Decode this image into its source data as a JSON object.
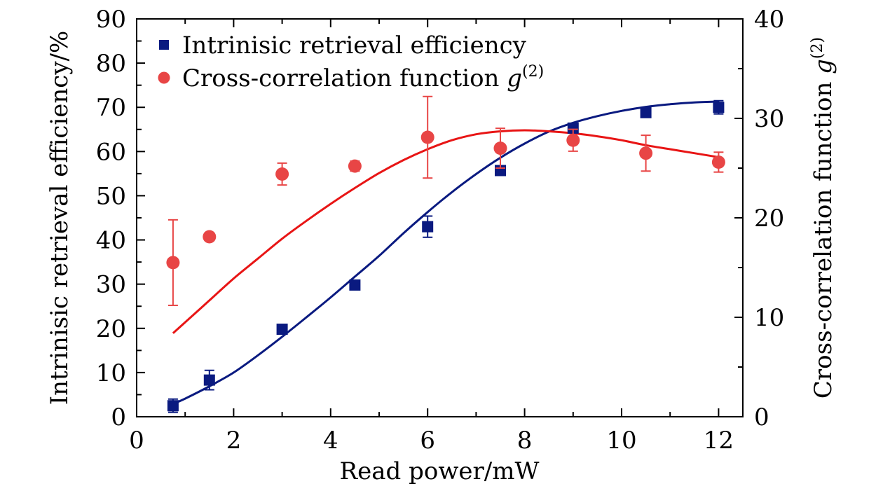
{
  "chart_data": {
    "type": "scatter",
    "title": "",
    "xlabel": "Read power/mW",
    "ylabel_left": "Intrinisic retrieval efficiency/%",
    "ylabel_right": "Cross-correlation function g(2)",
    "ylabel_right_main": "Cross-correlation function ",
    "ylabel_right_var": "g",
    "ylabel_right_sup": "(2)",
    "xlim": [
      0,
      12.5
    ],
    "ylim_left": [
      0,
      90
    ],
    "ylim_right": [
      0,
      40
    ],
    "x_ticks": [
      "0",
      "2",
      "4",
      "6",
      "8",
      "10",
      "12"
    ],
    "y_left_ticks": [
      "0",
      "10",
      "20",
      "30",
      "40",
      "50",
      "60",
      "70",
      "80",
      "90"
    ],
    "y_right_ticks": [
      "0",
      "10",
      "20",
      "30",
      "40"
    ],
    "legend_position": "top-left",
    "series": [
      {
        "name": "Intrinisic retrieval efficiency",
        "marker": "square",
        "axis": "left",
        "color": "#0a1a80",
        "x": [
          0.75,
          1.5,
          3,
          4.5,
          6,
          7.5,
          9,
          10.5,
          12
        ],
        "y": [
          2.5,
          8.3,
          19.8,
          29.8,
          43,
          55.7,
          65.3,
          68.8,
          70
        ],
        "err": [
          1.5,
          2.2,
          1,
          0.8,
          2.4,
          0.8,
          1,
          1,
          1.5
        ]
      },
      {
        "name": "Cross-correlation function g(2)",
        "name_main": "Cross-correlation function ",
        "name_var": "g",
        "name_sup": "(2)",
        "marker": "circle",
        "axis": "right",
        "color": "#e84545",
        "x": [
          0.75,
          1.5,
          3,
          4.5,
          6,
          7.5,
          9,
          10.5,
          12
        ],
        "y": [
          15.5,
          18.1,
          24.4,
          25.2,
          28.1,
          27,
          27.8,
          26.5,
          25.6
        ],
        "err": [
          4.3,
          0,
          1.1,
          0.5,
          4.1,
          2,
          1.1,
          1.8,
          1
        ]
      }
    ],
    "fits": [
      {
        "name": "efficiency-fit",
        "axis": "left",
        "color": "#0a1a80",
        "x": [
          0.75,
          1,
          1.5,
          2,
          2.5,
          3,
          3.5,
          4,
          4.5,
          5,
          5.5,
          6,
          6.5,
          7,
          7.5,
          8,
          8.5,
          9,
          9.5,
          10,
          10.5,
          11,
          11.5,
          12
        ],
        "y": [
          2.9,
          4.1,
          6.9,
          10,
          13.9,
          18.1,
          22.5,
          27,
          31.7,
          36.4,
          41.5,
          46.3,
          50.8,
          54.9,
          58.6,
          61.8,
          64.5,
          66.5,
          68,
          69.2,
          70.1,
          70.7,
          71.1,
          71.3
        ]
      },
      {
        "name": "correlation-fit",
        "axis": "right",
        "color": "#e81515",
        "x": [
          0.75,
          1,
          1.5,
          2,
          2.5,
          3,
          3.5,
          4,
          4.5,
          5,
          5.5,
          6,
          6.5,
          7,
          7.5,
          8,
          8.5,
          9,
          9.5,
          10,
          10.5,
          11,
          11.5,
          12
        ],
        "y": [
          8.4,
          9.5,
          11.7,
          13.9,
          15.9,
          17.9,
          19.7,
          21.4,
          23,
          24.5,
          25.8,
          26.9,
          27.8,
          28.4,
          28.7,
          28.8,
          28.7,
          28.5,
          28.2,
          27.8,
          27.3,
          26.9,
          26.5,
          26.1
        ]
      }
    ]
  }
}
